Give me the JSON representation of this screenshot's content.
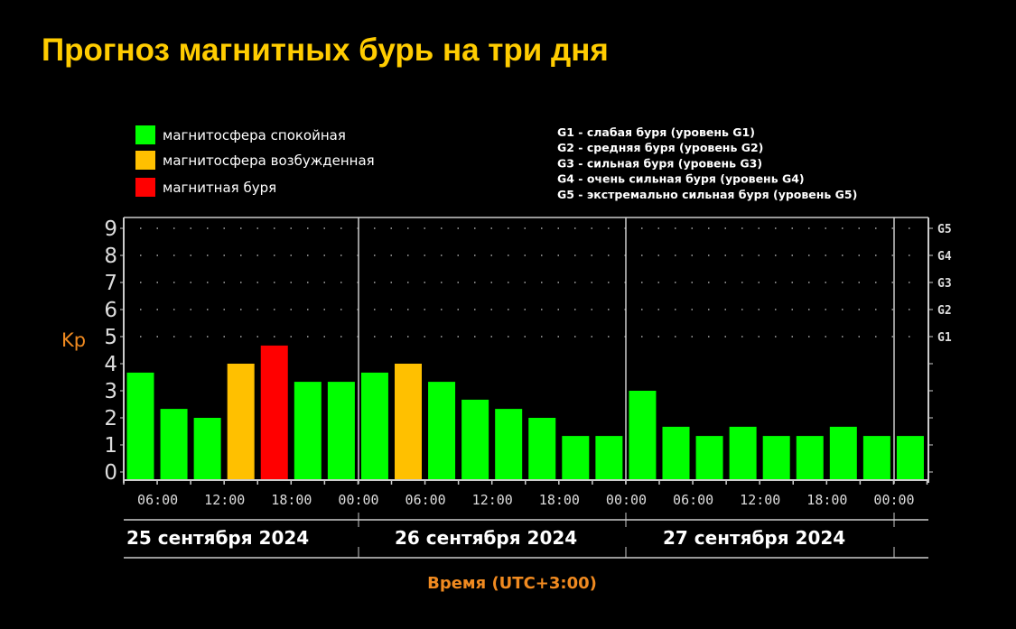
{
  "title": "Прогноз магнитных бурь на три дня",
  "chart_data": {
    "type": "bar",
    "title": "Прогноз магнитных бурь на три дня",
    "ylabel": "Kp",
    "xlabel": "Время (UTC+3:00)",
    "ylim": [
      0,
      9
    ],
    "yticks": [
      "0",
      "1",
      "2",
      "3",
      "4",
      "5",
      "6",
      "7",
      "8",
      "9"
    ],
    "right_ticks": [
      {
        "value": 5,
        "label": "G1"
      },
      {
        "value": 6,
        "label": "G2"
      },
      {
        "value": 7,
        "label": "G3"
      },
      {
        "value": 8,
        "label": "G4"
      },
      {
        "value": 9,
        "label": "G5"
      }
    ],
    "xticks": [
      "06:00",
      "12:00",
      "18:00",
      "00:00",
      "06:00",
      "12:00",
      "18:00",
      "00:00",
      "06:00",
      "12:00",
      "18:00",
      "00:00"
    ],
    "dates": [
      "25 сентября 2024",
      "26 сентября 2024",
      "27 сентября 2024"
    ],
    "interval_hours": 3,
    "start_hour": 3,
    "values": [
      3.67,
      2.33,
      2.0,
      4.0,
      4.67,
      3.33,
      3.33,
      3.67,
      4.0,
      3.33,
      2.67,
      2.33,
      2.0,
      1.33,
      1.33,
      3.0,
      1.67,
      1.33,
      1.67,
      1.33,
      1.33,
      1.67,
      1.33,
      1.33
    ],
    "categories": [
      "quiet",
      "quiet",
      "quiet",
      "excited",
      "storm",
      "quiet",
      "quiet",
      "quiet",
      "excited",
      "quiet",
      "quiet",
      "quiet",
      "quiet",
      "quiet",
      "quiet",
      "quiet",
      "quiet",
      "quiet",
      "quiet",
      "quiet",
      "quiet",
      "quiet",
      "quiet",
      "quiet"
    ],
    "legend": [
      {
        "key": "quiet",
        "label": "магнитосфера спокойная",
        "color": "#00ff00"
      },
      {
        "key": "excited",
        "label": "магнитосфера возбужденная",
        "color": "#ffc000"
      },
      {
        "key": "storm",
        "label": "магнитная буря",
        "color": "#ff0000"
      }
    ],
    "g_legend": [
      "G1 - слабая буря (уровень G1)",
      "G2 - средняя буря (уровень G2)",
      "G3 - сильная буря (уровень G3)",
      "G4 - очень сильная буря (уровень G4)",
      "G5 - экстремально сильная буря (уровень G5)"
    ]
  }
}
